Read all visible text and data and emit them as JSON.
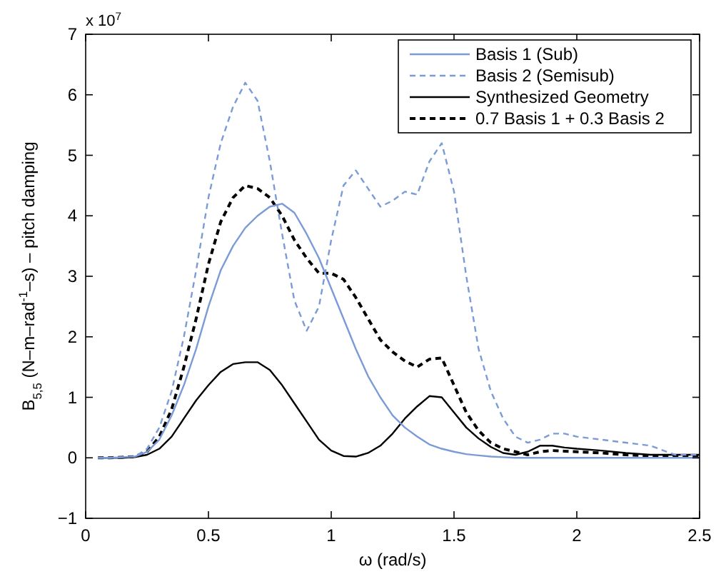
{
  "chart_data": {
    "type": "line",
    "xlabel": "ω (rad/s)",
    "ylabel": "B$_{5,5}$ (N–m–rad$^{-1}$–s) – pitch damping",
    "annotations": [
      "x 10$^{7}$"
    ],
    "x": [
      0.05,
      0.1,
      0.15,
      0.2,
      0.25,
      0.3,
      0.35,
      0.4,
      0.45,
      0.5,
      0.55,
      0.6,
      0.65,
      0.7,
      0.75,
      0.8,
      0.85,
      0.9,
      0.95,
      1.0,
      1.05,
      1.1,
      1.15,
      1.2,
      1.25,
      1.3,
      1.35,
      1.4,
      1.45,
      1.5,
      1.55,
      1.6,
      1.65,
      1.7,
      1.75,
      1.8,
      1.85,
      1.9,
      1.95,
      2.0,
      2.1,
      2.2,
      2.3,
      2.4,
      2.5
    ],
    "series": [
      {
        "name": "Basis 1 (Sub)",
        "color": "#7b9bd6",
        "line_style": "solid",
        "values": [
          0,
          0,
          0.01,
          0.02,
          0.1,
          0.3,
          0.7,
          1.2,
          1.8,
          2.5,
          3.1,
          3.5,
          3.8,
          4.0,
          4.15,
          4.2,
          4.05,
          3.7,
          3.3,
          2.8,
          2.3,
          1.8,
          1.35,
          1.0,
          0.7,
          0.5,
          0.35,
          0.22,
          0.15,
          0.1,
          0.06,
          0.04,
          0.02,
          0.01,
          0,
          0,
          0,
          0,
          0,
          0,
          0,
          0,
          0,
          0,
          0
        ]
      },
      {
        "name": "Basis 2 (Semisub)",
        "color": "#7b9bd6",
        "line_style": "dashed",
        "values": [
          0,
          0,
          0.01,
          0.02,
          0.15,
          0.5,
          1.1,
          2.0,
          3.1,
          4.3,
          5.2,
          5.8,
          6.2,
          5.9,
          4.9,
          3.7,
          2.6,
          2.1,
          2.5,
          3.6,
          4.5,
          4.75,
          4.45,
          4.15,
          4.25,
          4.4,
          4.35,
          4.9,
          5.2,
          4.4,
          3.0,
          1.8,
          1.1,
          0.65,
          0.35,
          0.25,
          0.3,
          0.4,
          0.4,
          0.35,
          0.3,
          0.25,
          0.2,
          0.05,
          0.05
        ]
      },
      {
        "name": "Synthesized Geometry",
        "color": "#000000",
        "line_style": "solid",
        "values": [
          0,
          0,
          0,
          0.01,
          0.05,
          0.15,
          0.35,
          0.65,
          0.95,
          1.2,
          1.42,
          1.55,
          1.58,
          1.58,
          1.45,
          1.2,
          0.9,
          0.6,
          0.3,
          0.12,
          0.03,
          0.02,
          0.08,
          0.2,
          0.4,
          0.65,
          0.85,
          1.02,
          1.0,
          0.75,
          0.5,
          0.32,
          0.18,
          0.08,
          0.05,
          0.1,
          0.2,
          0.2,
          0.17,
          0.15,
          0.12,
          0.08,
          0.05,
          0.05,
          0.05
        ]
      },
      {
        "name": "0.7 Basis 1 + 0.3 Basis 2",
        "color": "#000000",
        "line_style": "dashed",
        "values": [
          0,
          0,
          0.01,
          0.02,
          0.1,
          0.35,
          0.8,
          1.5,
          2.3,
          3.2,
          3.9,
          4.3,
          4.5,
          4.45,
          4.3,
          4.0,
          3.6,
          3.3,
          3.05,
          3.05,
          2.95,
          2.65,
          2.3,
          1.95,
          1.75,
          1.6,
          1.5,
          1.63,
          1.65,
          1.2,
          0.75,
          0.45,
          0.25,
          0.15,
          0.1,
          0.05,
          0.1,
          0.12,
          0.11,
          0.1,
          0.08,
          0.05,
          0.03,
          0.02,
          0.02
        ]
      }
    ],
    "xlim": [
      0,
      2.5
    ],
    "xticks": [
      0,
      0.5,
      1,
      1.5,
      2,
      2.5
    ],
    "ylim": [
      -1,
      7
    ],
    "yticks": [
      -1,
      0,
      1,
      2,
      3,
      4,
      5,
      6,
      7
    ],
    "legend": "top right",
    "grid": false
  }
}
